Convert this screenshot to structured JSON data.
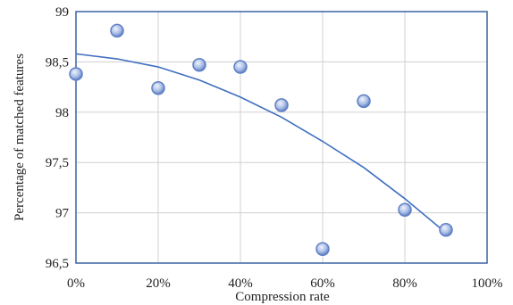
{
  "chart_data": {
    "type": "scatter",
    "title": "",
    "xlabel": "Compression rate",
    "ylabel": "Percentage of matched features",
    "xlim": [
      0,
      100
    ],
    "ylim": [
      96.5,
      99
    ],
    "x_ticks": [
      "0%",
      "20%",
      "40%",
      "60%",
      "80%",
      "100%"
    ],
    "y_ticks": [
      "96,5",
      "97",
      "97,5",
      "98",
      "98,5",
      "99"
    ],
    "grid": true,
    "legend": "none",
    "series": [
      {
        "x": [
          0,
          10,
          20,
          30,
          40,
          50,
          60,
          70,
          80,
          90
        ],
        "y": [
          98.38,
          98.81,
          98.24,
          98.47,
          98.45,
          98.07,
          96.64,
          98.11,
          97.03,
          96.83
        ]
      }
    ],
    "trendline": {
      "type": "polynomial",
      "x": [
        0,
        10,
        20,
        30,
        40,
        50,
        60,
        70,
        80,
        90
      ],
      "y": [
        98.58,
        98.53,
        98.45,
        98.32,
        98.15,
        97.95,
        97.71,
        97.45,
        97.14,
        96.8
      ]
    },
    "colors": {
      "frame": "#3a62a3",
      "grid": "#d0d0d0",
      "trendline": "#3f6fbf",
      "marker_fill": "#a9bde6",
      "marker_stroke": "#5f7fc4"
    }
  }
}
